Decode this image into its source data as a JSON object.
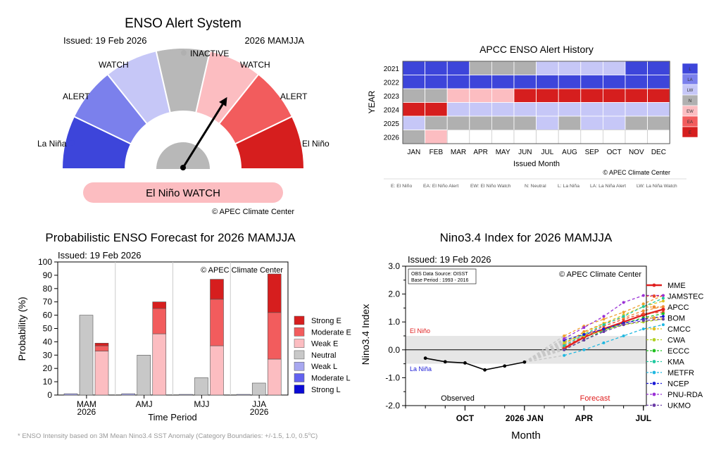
{
  "gauge": {
    "title": "ENSO Alert System",
    "issued": "Issued: 19 Feb 2026",
    "season": "2026 MAMJJA",
    "labels": {
      "inactive": "INACTIVE",
      "watch_left": "WATCH",
      "watch_right": "WATCH",
      "alert_left": "ALERT",
      "alert_right": "ALERT",
      "la_nina": "La Niña",
      "el_nino": "El Niño"
    },
    "colors": [
      "#3d45da",
      "#7b80ec",
      "#c6c7f7",
      "#b8b8b8",
      "#fcbdc1",
      "#f25c5d",
      "#d61e1e"
    ],
    "needle_angle_deg": 58,
    "status": "El Niño WATCH",
    "copyright": "© APEC Climate Center"
  },
  "history": {
    "title": "APCC ENSO Alert History",
    "years": [
      "2021",
      "2022",
      "2023",
      "2024",
      "2025",
      "2026"
    ],
    "months": [
      "JAN",
      "FEB",
      "MAR",
      "APR",
      "MAY",
      "JUN",
      "JUL",
      "AUG",
      "SEP",
      "OCT",
      "NOV",
      "DEC"
    ],
    "grid": [
      [
        "L",
        "L",
        "L",
        "N",
        "N",
        "N",
        "LW",
        "LW",
        "LW",
        "LW",
        "L",
        "L"
      ],
      [
        "L",
        "L",
        "L",
        "L",
        "L",
        "L",
        "L",
        "L",
        "L",
        "L",
        "L",
        "L"
      ],
      [
        "N",
        "N",
        "EW",
        "EW",
        "EW",
        "E",
        "E",
        "E",
        "E",
        "E",
        "E",
        "E"
      ],
      [
        "E",
        "E",
        "LW",
        "LW",
        "LW",
        "LW",
        "LW",
        "LW",
        "LW",
        "LW",
        "LW",
        "LW"
      ],
      [
        "LW",
        "N",
        "N",
        "N",
        "N",
        "N",
        "LW",
        "N",
        "LW",
        "LW",
        "N",
        "N"
      ],
      [
        "N",
        "EW",
        "",
        "",
        "",
        "",
        "",
        "",
        "",
        "",
        "",
        ""
      ]
    ],
    "ylabel": "YEAR",
    "xlabel": "Issued Month",
    "legend_codes": [
      "L",
      "LA",
      "LW",
      "N",
      "EW",
      "EA",
      "E"
    ],
    "legend_colors": [
      "#3d45da",
      "#7b80ec",
      "#c6c7f7",
      "#b0b0b0",
      "#fcbdc1",
      "#f25c5d",
      "#d61e1e"
    ],
    "copyright": "© APEC Climate Center",
    "footnote": [
      "E: El Niño",
      "EA: El Niño Alert",
      "EW: El Niño Watch",
      "N: Neutral",
      "L: La Niña",
      "LA: La Niña Alert",
      "LW: La Niña Watch"
    ]
  },
  "chart_data": [
    {
      "type": "bar",
      "title": "Probabilistic ENSO Forecast for 2026 MAMJJA",
      "issued": "Issued: 19 Feb 2026",
      "xlabel": "Time Period",
      "ylabel": "Probability (%)",
      "ylim": [
        0,
        100
      ],
      "yticks": [
        0,
        10,
        20,
        30,
        40,
        50,
        60,
        70,
        80,
        90,
        100
      ],
      "categories": [
        "MAM\n2026",
        "AMJ",
        "MJJ",
        "JJA\n2026"
      ],
      "series": [
        {
          "name": "Strong E",
          "color": "#d61e1e",
          "values": [
            2,
            5,
            15,
            29
          ]
        },
        {
          "name": "Moderate E",
          "color": "#f25c5d",
          "values": [
            4,
            19,
            35,
            35
          ]
        },
        {
          "name": "Weak E",
          "color": "#fcbdc1",
          "values": [
            33,
            46,
            37,
            27
          ]
        },
        {
          "name": "Neutral",
          "color": "#c8c8c8",
          "values": [
            60,
            30,
            13,
            9
          ]
        },
        {
          "name": "Weak L",
          "color": "#a8a8f0",
          "values": [
            1,
            1,
            0.5,
            0.5
          ]
        },
        {
          "name": "Moderate L",
          "color": "#6262f0",
          "values": [
            0,
            0,
            0,
            0
          ]
        },
        {
          "name": "Strong L",
          "color": "#0a0ad6",
          "values": [
            0,
            0,
            0,
            0
          ]
        }
      ],
      "copyright": "© APEC Climate Center",
      "footnote": "* ENSO Intensity based on 3M Mean Nino3.4 SST Anomaly (Category Boundaries: +/-1.5, 1.0, 0.5",
      "footnote_sup": "o",
      "footnote_end": "C)"
    },
    {
      "type": "line",
      "title": "Nino3.4 Index for 2026 MAMJJA",
      "issued": "Issued: 19 Feb 2026",
      "xlabel": "Month",
      "ylabel": "Nino3.4 Index",
      "ylim": [
        -2.0,
        3.0
      ],
      "yticks": [
        "-2.0",
        "-1.0",
        "0.0",
        "1.0",
        "2.0",
        "3.0"
      ],
      "xticks": [
        "OCT",
        "2026 JAN",
        "APR",
        "JUL"
      ],
      "info_box": [
        "OBS Data Source: OISST",
        "Base Period : 1993 - 2016"
      ],
      "copyright": "© APEC Climate Center",
      "el_nino_label": "El Niño",
      "la_nina_label": "La Niña",
      "observed_label": "Observed",
      "forecast_label": "Forecast",
      "observed": {
        "months": [
          "2025-08",
          "2025-09",
          "2025-10",
          "2025-11",
          "2025-12",
          "2026-01"
        ],
        "values": [
          -0.3,
          -0.43,
          -0.47,
          -0.72,
          -0.58,
          -0.44
        ]
      },
      "forecast_months": [
        "2026-03",
        "2026-04",
        "2026-05",
        "2026-06",
        "2026-07",
        "2026-08"
      ],
      "series": [
        {
          "name": "MME",
          "color": "#e02020",
          "values": [
            0.05,
            0.45,
            0.75,
            1.0,
            1.25,
            1.45
          ]
        },
        {
          "name": "JAMSTEC",
          "color": "#e84a2a",
          "values": [
            0.1,
            0.5,
            0.85,
            1.1,
            1.3,
            1.35
          ]
        },
        {
          "name": "APCC",
          "color": "#f08a30",
          "values": [
            0.2,
            0.65,
            0.95,
            1.15,
            1.4,
            1.55
          ]
        },
        {
          "name": "BOM",
          "color": "#f0a030",
          "values": [
            0.5,
            0.85,
            1.1,
            1.35,
            1.65,
            1.95
          ]
        },
        {
          "name": "CMCC",
          "color": "#e0c020",
          "values": [
            0.25,
            0.6,
            0.95,
            1.25,
            1.55,
            1.75
          ]
        },
        {
          "name": "CWA",
          "color": "#b0d020",
          "values": [
            0.3,
            0.5,
            0.7,
            0.9,
            1.0,
            1.1
          ]
        },
        {
          "name": "ECCC",
          "color": "#20c020",
          "values": [
            0.0,
            0.35,
            0.7,
            0.95,
            1.15,
            1.3
          ]
        },
        {
          "name": "KMA",
          "color": "#20c8a0",
          "values": [
            0.15,
            0.55,
            0.9,
            1.2,
            1.55,
            1.85
          ]
        },
        {
          "name": "METFR",
          "color": "#20b8e0",
          "values": [
            -0.2,
            0.0,
            0.25,
            0.5,
            0.75,
            0.9
          ]
        },
        {
          "name": "NCEP",
          "color": "#1a1ad6",
          "values": [
            0.35,
            0.55,
            0.75,
            0.95,
            1.1,
            1.2
          ]
        },
        {
          "name": "PNU-RDA",
          "color": "#9a30d6",
          "values": [
            0.4,
            0.8,
            1.2,
            1.7,
            1.95,
            1.95
          ]
        },
        {
          "name": "UKMO",
          "color": "#6a3aa6",
          "values": [
            0.0,
            0.35,
            0.65,
            0.9,
            1.05,
            1.1
          ]
        }
      ]
    }
  ]
}
